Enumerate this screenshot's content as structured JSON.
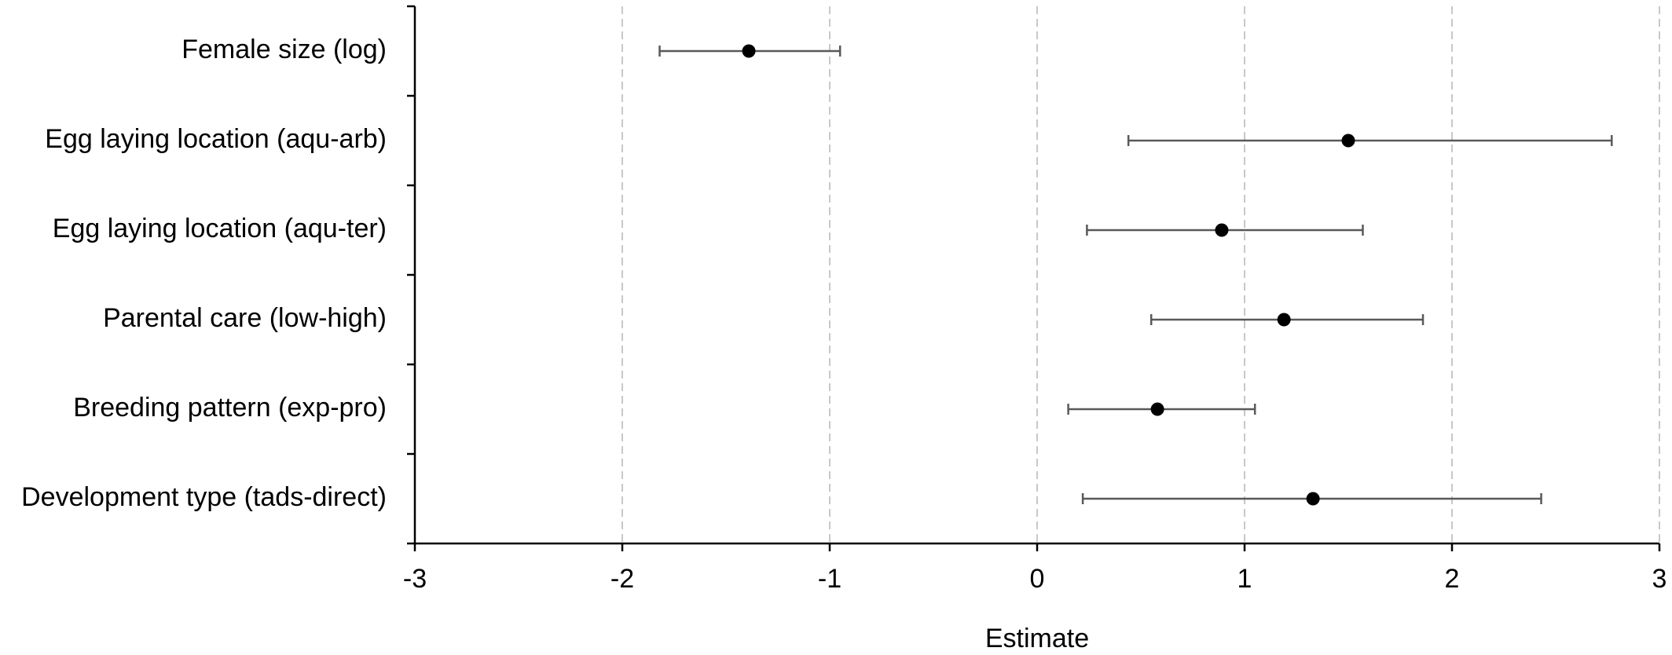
{
  "chart_data": {
    "type": "scatter",
    "subtype": "forest-plot",
    "title": "",
    "xlabel": "Estimate",
    "ylabel": "",
    "xlim": [
      -3,
      3
    ],
    "x_ticks": [
      -3,
      -2,
      -1,
      0,
      1,
      2,
      3
    ],
    "x_tick_labels": [
      "-3",
      "-2",
      "-1",
      "0",
      "1",
      "2",
      "3"
    ],
    "grid": "vertical dashed",
    "legend": "none",
    "categories": [
      "Female size (log)",
      "Egg laying location (aqu-arb)",
      "Egg laying location (aqu-ter)",
      "Parental care (low-high)",
      "Breeding pattern (exp-pro)",
      "Development type (tads-direct)"
    ],
    "series": [
      {
        "estimate": [
          -1.39,
          1.5,
          0.89,
          1.19,
          0.58,
          1.33
        ],
        "lower": [
          -1.82,
          0.44,
          0.24,
          0.55,
          0.15,
          0.22
        ],
        "upper": [
          -0.95,
          2.77,
          1.57,
          1.86,
          1.05,
          2.43
        ]
      }
    ],
    "colors": {
      "point": "#000000",
      "error_bar": "#595959",
      "grid": "#c8c8c8",
      "axis": "#000000"
    }
  }
}
